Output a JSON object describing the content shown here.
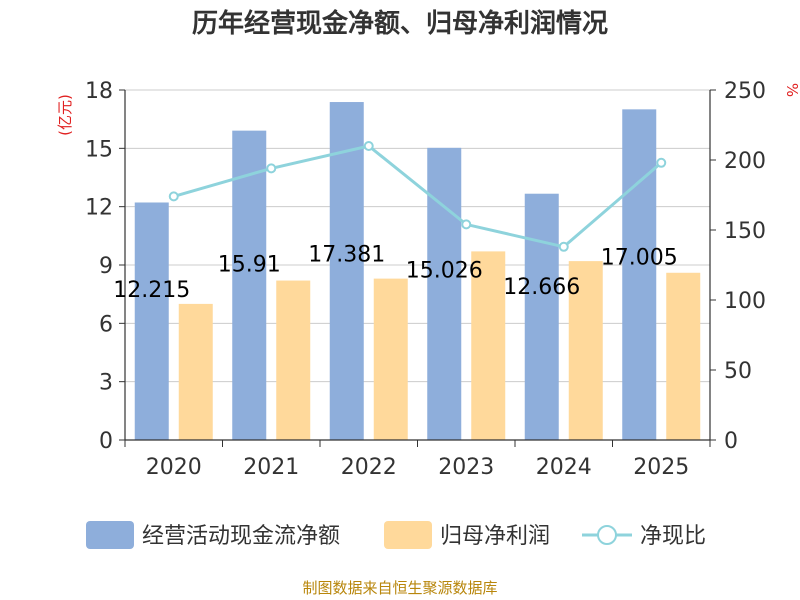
{
  "chart_data": {
    "type": "bar",
    "title": "历年经营现金净额、归母净利润情况",
    "categories": [
      "2020",
      "2021",
      "2022",
      "2023",
      "2024",
      "2025"
    ],
    "series": [
      {
        "name": "经营活动现金流净额",
        "type": "bar",
        "axis": "left",
        "color": "#8eaedb",
        "values": [
          12.215,
          15.91,
          17.381,
          15.026,
          12.666,
          17.005
        ]
      },
      {
        "name": "归母净利润",
        "type": "bar",
        "axis": "left",
        "color": "#ffd99b",
        "values": [
          7.0,
          8.2,
          8.3,
          9.7,
          9.2,
          8.6
        ]
      },
      {
        "name": "净现比",
        "type": "line",
        "axis": "right",
        "color": "#8ed3dc",
        "values": [
          174,
          194,
          210,
          154,
          138,
          198
        ]
      }
    ],
    "data_labels": [
      "12.215",
      "15.91",
      "17.381",
      "15.026",
      "12.666",
      "17.005"
    ],
    "y_left": {
      "label": "(亿元)",
      "min": 0,
      "max": 18,
      "ticks": [
        0,
        3,
        6,
        9,
        12,
        15,
        18
      ]
    },
    "y_right": {
      "label": "%",
      "min": 0,
      "max": 250,
      "ticks": [
        0,
        50,
        100,
        150,
        200,
        250
      ]
    },
    "legend": [
      "经营活动现金流净额",
      "归母净利润",
      "净现比"
    ],
    "legend_position": "bottom",
    "grid": true,
    "source": "制图数据来自恒生聚源数据库"
  }
}
